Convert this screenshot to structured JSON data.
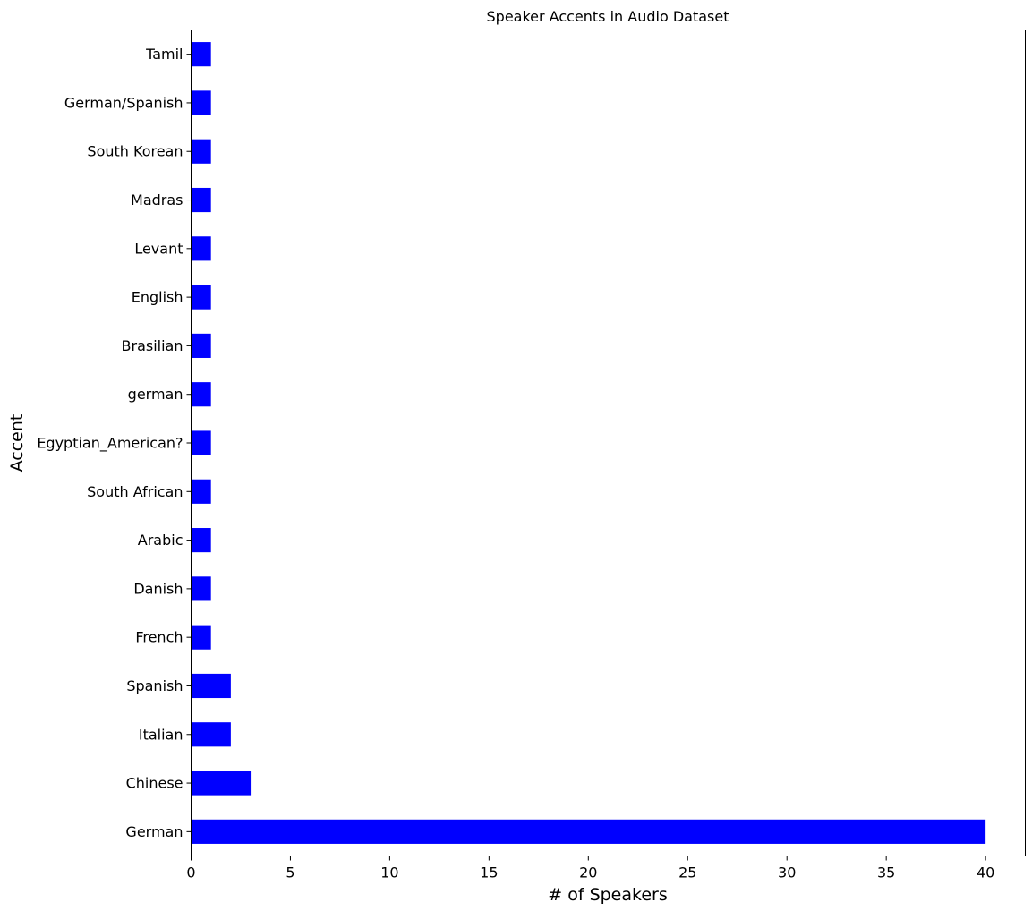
{
  "chart_data": {
    "type": "bar",
    "orientation": "horizontal",
    "title": "Speaker Accents in Audio Dataset",
    "xlabel": "# of Speakers",
    "ylabel": "Accent",
    "categories": [
      "German",
      "Chinese",
      "Italian",
      "Spanish",
      "French",
      "Danish",
      "Arabic",
      "South African",
      "Egyptian_American?",
      "german",
      "Brasilian",
      "English",
      "Levant",
      "Madras",
      "South Korean",
      "German/Spanish",
      "Tamil"
    ],
    "values": [
      40,
      3,
      2,
      2,
      1,
      1,
      1,
      1,
      1,
      1,
      1,
      1,
      1,
      1,
      1,
      1,
      1
    ],
    "xlim": [
      0,
      42
    ],
    "xticks": [
      "0",
      "5",
      "10",
      "15",
      "20",
      "25",
      "30",
      "35",
      "40"
    ],
    "bar_color": "#0000ff",
    "grid": false,
    "legend": "none"
  }
}
